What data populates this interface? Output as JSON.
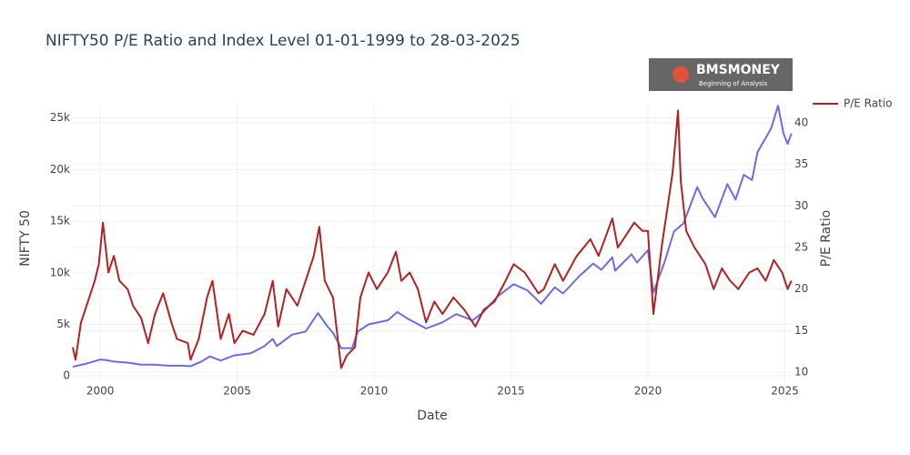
{
  "chart_data": {
    "type": "line",
    "title": "NIFTY50 P/E Ratio and Index Level 01-01-1999 to 28-03-2025",
    "x_label": "Date",
    "y_label": "NIFTY 50",
    "y2_label": "P/E Ratio",
    "logo": {
      "text": "BMSMONEY",
      "tagline": "Beginning of Analysis"
    },
    "xlim": [
      1999,
      2025.25
    ],
    "xticks": [
      2000,
      2005,
      2010,
      2015,
      2020,
      2025
    ],
    "ylim": [
      -600,
      26300
    ],
    "yticks": [
      0,
      {
        "value": 5000,
        "label": "5k"
      },
      {
        "value": 10000,
        "label": "10k"
      },
      {
        "value": 15000,
        "label": "15k"
      },
      {
        "value": 20000,
        "label": "20k"
      },
      {
        "value": 25000,
        "label": "25k"
      }
    ],
    "y2lim": [
      8.8,
      42.2
    ],
    "y2ticks": [
      10,
      15,
      20,
      25,
      30,
      35,
      40
    ],
    "grid": true,
    "legend": "top-right",
    "series": [
      {
        "color": "#6b6be6",
        "axis": "y",
        "x": [
          1999.0,
          1999.5,
          2000.0,
          2000.2,
          2000.5,
          2001.0,
          2001.5,
          2002.0,
          2002.5,
          2003.0,
          2003.3,
          2003.7,
          2004.0,
          2004.4,
          2004.9,
          2005.5,
          2006.0,
          2006.3,
          2006.45,
          2007.0,
          2007.5,
          2007.95,
          2008.3,
          2008.5,
          2008.8,
          2009.2,
          2009.4,
          2009.8,
          2010.5,
          2010.85,
          2011.2,
          2011.9,
          2012.5,
          2013.0,
          2013.6,
          2014.0,
          2014.5,
          2015.1,
          2015.6,
          2016.1,
          2016.6,
          2016.9,
          2017.5,
          2018.0,
          2018.3,
          2018.7,
          2018.8,
          2019.4,
          2019.6,
          2020.0,
          2020.2,
          2020.6,
          2020.95,
          2021.3,
          2021.8,
          2022.0,
          2022.45,
          2022.9,
          2023.2,
          2023.5,
          2023.8,
          2024.0,
          2024.5,
          2024.75,
          2024.95,
          2025.1,
          2025.24
        ],
        "values": [
          900,
          1200,
          1600,
          1550,
          1400,
          1300,
          1100,
          1100,
          1000,
          1000,
          950,
          1400,
          1900,
          1500,
          2000,
          2200,
          2900,
          3600,
          2900,
          4000,
          4300,
          6100,
          4800,
          4200,
          2700,
          2700,
          4300,
          5000,
          5400,
          6200,
          5600,
          4600,
          5200,
          6000,
          5400,
          6200,
          7700,
          8900,
          8300,
          7000,
          8600,
          8000,
          9700,
          10900,
          10300,
          11500,
          10200,
          11800,
          11000,
          12200,
          8100,
          11000,
          14000,
          14800,
          18300,
          17200,
          15400,
          18600,
          17100,
          19500,
          19000,
          21700,
          24000,
          26200,
          23500,
          22500,
          23500
        ]
      },
      {
        "name": "P/E Ratio",
        "color": "#b22222",
        "axis": "y2",
        "x": [
          1999.0,
          1999.1,
          1999.3,
          1999.6,
          1999.8,
          1999.95,
          2000.1,
          2000.3,
          2000.5,
          2000.7,
          2001.0,
          2001.2,
          2001.5,
          2001.75,
          2002.0,
          2002.3,
          2002.6,
          2002.8,
          2003.2,
          2003.3,
          2003.6,
          2003.9,
          2004.1,
          2004.4,
          2004.7,
          2004.9,
          2005.2,
          2005.6,
          2006.0,
          2006.3,
          2006.5,
          2006.8,
          2007.2,
          2007.5,
          2007.8,
          2008.0,
          2008.2,
          2008.5,
          2008.8,
          2009.0,
          2009.3,
          2009.5,
          2009.8,
          2010.1,
          2010.5,
          2010.8,
          2011.0,
          2011.3,
          2011.6,
          2011.9,
          2012.2,
          2012.5,
          2012.9,
          2013.3,
          2013.7,
          2014.0,
          2014.4,
          2014.8,
          2015.1,
          2015.5,
          2016.0,
          2016.2,
          2016.6,
          2016.9,
          2017.4,
          2017.9,
          2018.2,
          2018.7,
          2018.9,
          2019.5,
          2019.8,
          2020.0,
          2020.2,
          2020.5,
          2020.9,
          2021.1,
          2021.2,
          2021.4,
          2021.7,
          2022.1,
          2022.4,
          2022.7,
          2023.0,
          2023.3,
          2023.7,
          2024.0,
          2024.3,
          2024.6,
          2024.9,
          2025.1,
          2025.24
        ],
        "values": [
          13,
          11.5,
          16,
          19,
          21,
          23,
          28,
          22,
          24,
          21,
          20,
          18,
          16.5,
          13.5,
          17,
          19.5,
          16,
          14,
          13.5,
          11.5,
          14,
          19,
          21,
          14,
          17,
          13.5,
          15,
          14.5,
          17,
          21,
          15.5,
          20,
          18,
          21,
          24,
          27.5,
          21,
          19,
          10.5,
          12,
          13,
          19,
          22,
          20,
          22,
          24.5,
          21,
          22,
          20,
          16,
          18.5,
          17,
          19,
          17.5,
          15.5,
          17.5,
          18.5,
          21,
          23,
          22,
          19.5,
          20,
          23,
          21,
          24,
          26,
          24,
          28.5,
          25,
          28,
          27,
          27,
          17,
          25,
          34,
          41.5,
          33,
          27,
          25,
          23,
          20,
          22.5,
          21,
          20,
          22,
          22.5,
          21,
          23.5,
          22,
          20,
          21
        ]
      }
    ]
  }
}
